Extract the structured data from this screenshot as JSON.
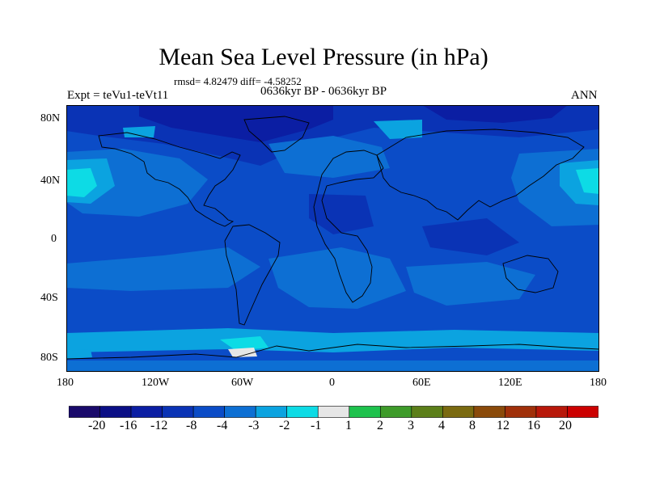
{
  "title": "Mean Sea Level Pressure (in hPa)",
  "stats": "rmsd= 4.82479 diff= -4.58252",
  "left_label": "Expt = teVu1-teVt11",
  "center_label": "0636kyr BP - 0636kyr BP",
  "right_label": "ANN",
  "lat_ticks": [
    "80N",
    "40N",
    "0",
    "40S",
    "80S"
  ],
  "lon_ticks": [
    "180",
    "120W",
    "60W",
    "0",
    "60E",
    "120E",
    "180"
  ],
  "colorbar": {
    "colors": [
      "#1a0a6b",
      "#0b0f86",
      "#0b1ea3",
      "#0a33b5",
      "#0b4cc7",
      "#0d6fd3",
      "#0ba3e0",
      "#0ddbe5",
      "#e6e6e6",
      "#1ec24d",
      "#3e9b2a",
      "#5c7f1a",
      "#7a6a10",
      "#8a4a0a",
      "#a0300a",
      "#b8180a",
      "#cc0000"
    ],
    "labels": [
      "-20",
      "-16",
      "-12",
      "-8",
      "-4",
      "-3",
      "-2",
      "-1",
      "1",
      "2",
      "3",
      "4",
      "8",
      "12",
      "16",
      "20"
    ]
  },
  "colors": {
    "base": "#0b4cc7",
    "lighter": "#0d6fd3",
    "light": "#0ba3e0",
    "cyan": "#0ddbe5",
    "dark": "#0a33b5",
    "darker": "#0b1ea3",
    "white": "#e6e6e6",
    "coast": "#000000"
  },
  "icons": [
    "map-field",
    "coastline"
  ]
}
